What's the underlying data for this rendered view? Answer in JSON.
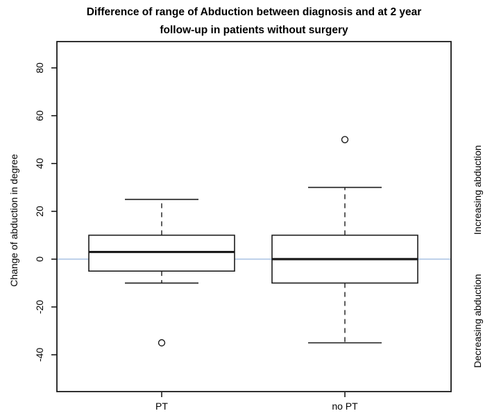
{
  "chart_data": {
    "type": "boxplot",
    "title": "Difference of range of Abduction between diagnosis and at 2 year follow-up in patients without surgery",
    "title_lines": [
      "Difference of range of Abduction between diagnosis and at 2 year",
      "follow-up in patients without surgery"
    ],
    "ylabel": "Change of abduction in degree",
    "xlabel": "",
    "categories": [
      "PT",
      "no PT"
    ],
    "yticks": [
      -40,
      -20,
      0,
      20,
      40,
      60,
      80
    ],
    "ylim": [
      -55.4,
      91.0
    ],
    "grid": false,
    "reference_line_y": 0,
    "right_labels": [
      "Increasing abduction",
      "Decreasing abduction"
    ],
    "series": [
      {
        "name": "PT",
        "lower_whisker": -10,
        "q1": -5,
        "median": 3,
        "q3": 10,
        "upper_whisker": 25,
        "outliers": [
          -35
        ]
      },
      {
        "name": "no PT",
        "lower_whisker": -35,
        "q1": -10,
        "median": 0,
        "q3": 10,
        "upper_whisker": 30,
        "outliers": [
          50
        ]
      }
    ],
    "colors": {
      "line": "#1a1a1a",
      "box_fill": "#ffffff",
      "reference_line": "#bccfe9",
      "background": "#ffffff"
    }
  }
}
